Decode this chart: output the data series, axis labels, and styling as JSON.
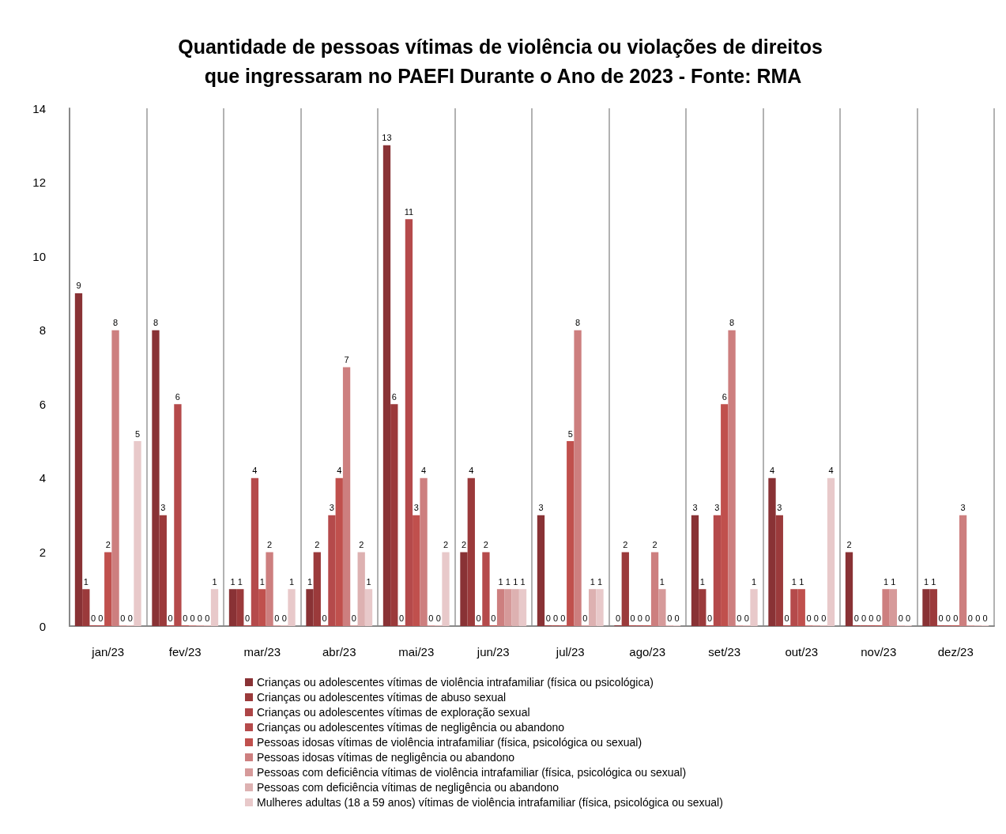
{
  "chart_data": {
    "type": "bar",
    "title": "Quantidade de pessoas vítimas de violência ou violações de direitos que ingressaram no PAEFI Durante o Ano de 2023 - Fonte: RMA",
    "categories": [
      "jan/23",
      "fev/23",
      "mar/23",
      "abr/23",
      "mai/23",
      "jun/23",
      "jul/23",
      "ago/23",
      "set/23",
      "out/23",
      "nov/23",
      "dez/23"
    ],
    "series": [
      {
        "name": "Crianças ou adolescentes vítimas de violência intrafamiliar (física ou psicológica)",
        "color": "#893235",
        "values": [
          9,
          8,
          1,
          1,
          13,
          2,
          3,
          0,
          3,
          4,
          2,
          1
        ]
      },
      {
        "name": "Crianças ou adolescentes vítimas de abuso sexual",
        "color": "#9b3a3b",
        "values": [
          1,
          3,
          1,
          2,
          6,
          4,
          0,
          2,
          1,
          3,
          0,
          1
        ]
      },
      {
        "name": "Crianças ou adolescentes vítimas de exploração sexual",
        "color": "#ad4546",
        "values": [
          0,
          0,
          0,
          0,
          0,
          0,
          0,
          0,
          0,
          0,
          0,
          0
        ]
      },
      {
        "name": "Crianças ou adolescentes vítimas de negligência ou abandono",
        "color": "#b54a4b",
        "values": [
          0,
          6,
          4,
          3,
          11,
          2,
          0,
          0,
          3,
          1,
          0,
          0
        ]
      },
      {
        "name": "Pessoas idosas vítimas de violência intrafamiliar (física, psicológica ou sexual)",
        "color": "#c0504d",
        "values": [
          2,
          0,
          1,
          4,
          3,
          0,
          5,
          0,
          6,
          1,
          0,
          0
        ]
      },
      {
        "name": "Pessoas idosas vítimas de negligência ou abandono",
        "color": "#cd7f7f",
        "values": [
          8,
          0,
          2,
          7,
          4,
          1,
          8,
          2,
          8,
          0,
          1,
          3
        ]
      },
      {
        "name": "Pessoas com deficiência vítimas de violência intrafamiliar (física, psicológica ou sexual)",
        "color": "#d69a9a",
        "values": [
          0,
          0,
          0,
          0,
          0,
          1,
          0,
          1,
          0,
          0,
          1,
          0
        ]
      },
      {
        "name": "Pessoas com deficiência vítimas de negligência ou abandono",
        "color": "#ddb1b1",
        "values": [
          0,
          0,
          0,
          2,
          0,
          1,
          1,
          0,
          0,
          0,
          0,
          0
        ]
      },
      {
        "name": "Mulheres adultas (18 a 59 anos) vítimas de violência intrafamiliar (física, psicológica ou sexual)",
        "color": "#e8c9ca",
        "values": [
          5,
          1,
          1,
          1,
          2,
          1,
          1,
          0,
          1,
          4,
          0,
          0
        ]
      }
    ],
    "ylim": [
      0,
      14
    ],
    "yticks": [
      0,
      2,
      4,
      6,
      8,
      10,
      12,
      14
    ],
    "grid": "x",
    "legend": "bottom",
    "data_labels": true
  }
}
